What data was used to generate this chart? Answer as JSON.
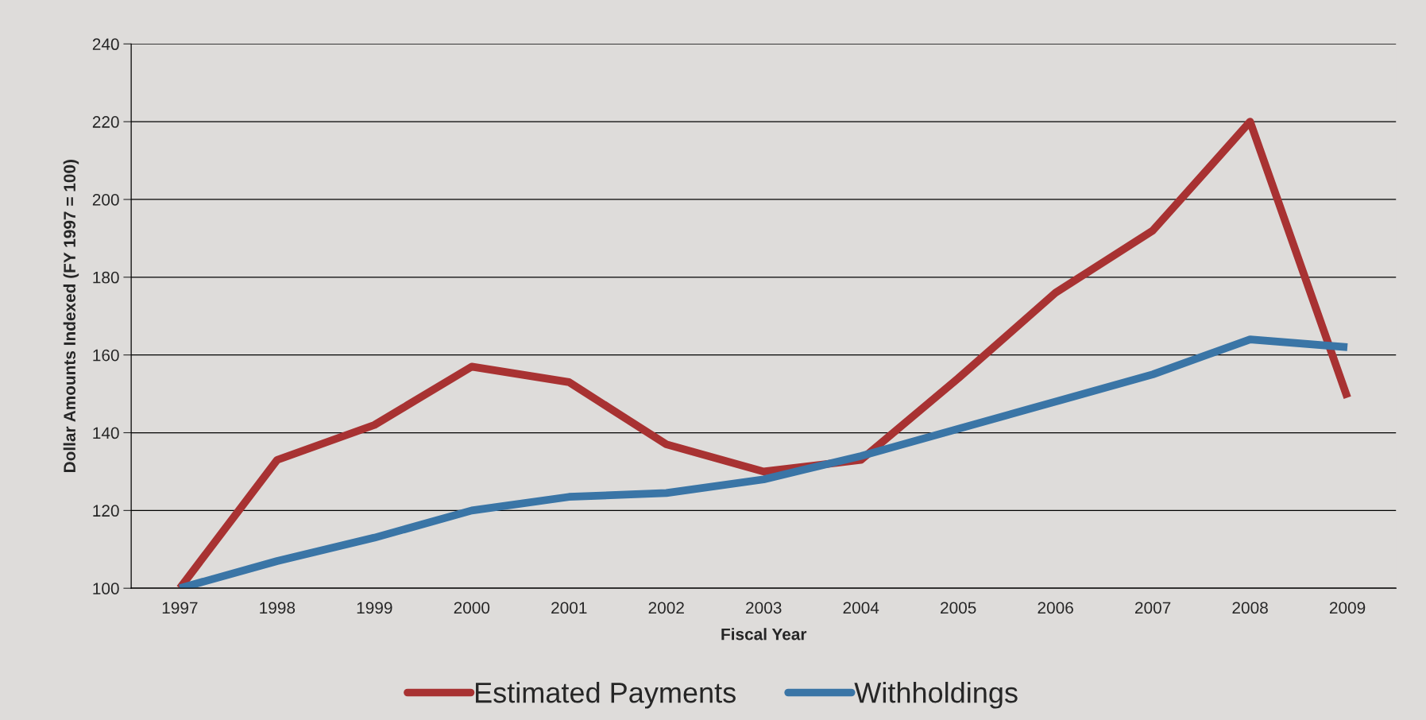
{
  "chart_data": {
    "type": "line",
    "xlabel": "Fiscal Year",
    "ylabel": "Dollar Amounts Indexed (FY 1997 = 100)",
    "categories": [
      "1997",
      "1998",
      "1999",
      "2000",
      "2001",
      "2002",
      "2003",
      "2004",
      "2005",
      "2006",
      "2007",
      "2008",
      "2009"
    ],
    "series": [
      {
        "name": "Estimated Payments",
        "color": "#a83232",
        "values": [
          100,
          133,
          142,
          157,
          153,
          137,
          130,
          133,
          154,
          176,
          192,
          220,
          149
        ]
      },
      {
        "name": "Withholdings",
        "color": "#3a75a6",
        "values": [
          100,
          107,
          113,
          120,
          123.5,
          124.5,
          128,
          134,
          141,
          148,
          155,
          164,
          162
        ]
      }
    ],
    "ylim": [
      100,
      240
    ],
    "yticks": [
      100,
      120,
      140,
      160,
      180,
      200,
      220,
      240
    ],
    "grid": "y",
    "legend": "bottom",
    "marker": "none",
    "line_style": "solid"
  }
}
